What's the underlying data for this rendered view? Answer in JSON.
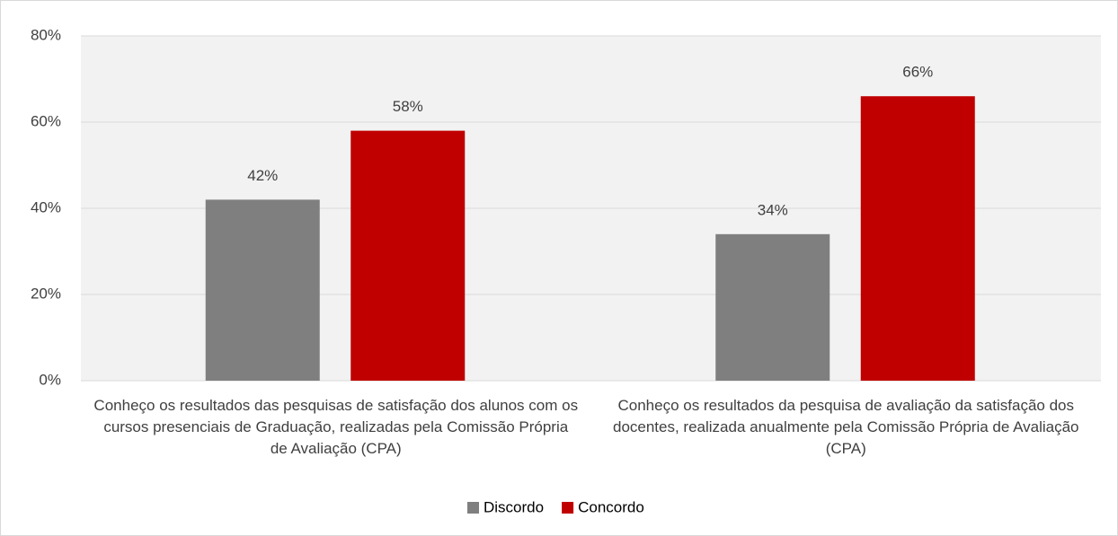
{
  "chart_data": {
    "type": "bar",
    "categories": [
      "Conheço os resultados das pesquisas de satisfação dos alunos com os cursos presenciais de Graduação, realizadas pela Comissão Própria de Avaliação (CPA)",
      "Conheço os resultados da pesquisa de avaliação da satisfação dos docentes, realizada anualmente pela Comissão Própria de Avaliação (CPA)"
    ],
    "series": [
      {
        "name": "Discordo",
        "color": "#7f7f7f",
        "values": [
          42,
          34
        ],
        "value_labels": [
          "42%",
          "34%"
        ]
      },
      {
        "name": "Concordo",
        "color": "#c00000",
        "values": [
          58,
          66
        ],
        "value_labels": [
          "58%",
          "66%"
        ]
      }
    ],
    "ylim": [
      0,
      80
    ],
    "yticks": [
      {
        "value": 0,
        "label": "0%"
      },
      {
        "value": 20,
        "label": "20%"
      },
      {
        "value": 40,
        "label": "40%"
      },
      {
        "value": 60,
        "label": "60%"
      },
      {
        "value": 80,
        "label": "80%"
      }
    ],
    "grid": true,
    "legend": "bottom"
  }
}
